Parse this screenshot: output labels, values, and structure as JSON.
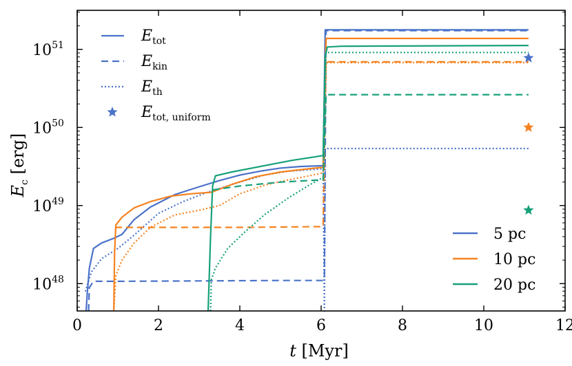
{
  "chart_data": {
    "type": "line",
    "xlabel": "t [Myr]",
    "ylabel": "E_c [erg]",
    "xlim": [
      0,
      12
    ],
    "ylim_log10": [
      47.65,
      51.5
    ],
    "yscale": "log",
    "x_ticks": [
      "0",
      "2",
      "4",
      "6",
      "8",
      "10",
      "12"
    ],
    "y_ticks": [
      {
        "base": "10",
        "exp": "48",
        "log10": 48
      },
      {
        "base": "10",
        "exp": "49",
        "log10": 49
      },
      {
        "base": "10",
        "exp": "50",
        "log10": 50
      },
      {
        "base": "10",
        "exp": "51",
        "log10": 51
      }
    ],
    "colors": {
      "5 pc": "#4a72c8",
      "10 pc": "#f5821f",
      "20 pc": "#16a07a"
    },
    "legend_styles": [
      {
        "label_main": "E",
        "label_sub": "tot",
        "style": "solid",
        "symbol": "line"
      },
      {
        "label_main": "E",
        "label_sub": "kin",
        "style": "dashed",
        "symbol": "line"
      },
      {
        "label_main": "E",
        "label_sub": "th",
        "style": "dotted",
        "symbol": "line"
      },
      {
        "label_main": "E",
        "label_sub": "tot, uniform",
        "style": "star",
        "symbol": "star"
      }
    ],
    "legend_runs": [
      {
        "label": "5 pc",
        "color": "#4a72c8"
      },
      {
        "label": "10 pc",
        "color": "#f5821f"
      },
      {
        "label": "20 pc",
        "color": "#16a07a"
      }
    ],
    "series": [
      {
        "name": "5 pc E_tot",
        "color": "#4a72c8",
        "style": "solid",
        "points": [
          [
            0.22,
            47.65
          ],
          [
            0.25,
            47.9
          ],
          [
            0.3,
            48.2
          ],
          [
            0.4,
            48.45
          ],
          [
            0.6,
            48.52
          ],
          [
            0.9,
            48.58
          ],
          [
            1.1,
            48.63
          ],
          [
            1.4,
            48.82
          ],
          [
            1.8,
            48.98
          ],
          [
            2.4,
            49.14
          ],
          [
            3.0,
            49.24
          ],
          [
            3.5,
            49.32
          ],
          [
            4.0,
            49.39
          ],
          [
            4.5,
            49.44
          ],
          [
            5.0,
            49.48
          ],
          [
            5.5,
            49.5
          ],
          [
            6.05,
            49.51
          ],
          [
            6.1,
            51.25
          ],
          [
            11.1,
            51.25
          ]
        ]
      },
      {
        "name": "5 pc E_kin",
        "color": "#4a72c8",
        "style": "dashed",
        "points": [
          [
            0.28,
            47.65
          ],
          [
            0.3,
            47.95
          ],
          [
            0.4,
            48.03
          ],
          [
            1.0,
            48.03
          ],
          [
            3.0,
            48.035
          ],
          [
            5.0,
            48.04
          ],
          [
            6.05,
            48.04
          ],
          [
            6.08,
            48.05
          ],
          [
            6.12,
            51.24
          ],
          [
            11.1,
            51.24
          ]
        ]
      },
      {
        "name": "5 pc E_th",
        "color": "#4a72c8",
        "style": "dotted",
        "points": [
          [
            0.2,
            47.9
          ],
          [
            0.35,
            48.15
          ],
          [
            0.6,
            48.32
          ],
          [
            1.0,
            48.45
          ],
          [
            1.4,
            48.62
          ],
          [
            2.0,
            48.9
          ],
          [
            2.6,
            49.05
          ],
          [
            3.2,
            49.17
          ],
          [
            4.0,
            49.3
          ],
          [
            4.6,
            49.39
          ],
          [
            5.2,
            49.44
          ],
          [
            6.05,
            49.47
          ],
          [
            6.08,
            47.65
          ],
          [
            6.1,
            49.73
          ],
          [
            11.1,
            49.73
          ]
        ]
      },
      {
        "name": "10 pc E_tot",
        "color": "#f5821f",
        "style": "solid",
        "points": [
          [
            0.9,
            47.65
          ],
          [
            0.92,
            48.4
          ],
          [
            0.95,
            48.75
          ],
          [
            1.1,
            48.85
          ],
          [
            1.4,
            48.97
          ],
          [
            1.8,
            49.05
          ],
          [
            2.3,
            49.12
          ],
          [
            2.8,
            49.15
          ],
          [
            3.3,
            49.17
          ],
          [
            3.8,
            49.27
          ],
          [
            4.4,
            49.37
          ],
          [
            5.0,
            49.43
          ],
          [
            5.5,
            49.46
          ],
          [
            6.05,
            49.49
          ],
          [
            6.12,
            51.14
          ],
          [
            11.1,
            51.14
          ]
        ]
      },
      {
        "name": "10 pc E_kin",
        "color": "#f5821f",
        "style": "dashed",
        "points": [
          [
            0.93,
            48.72
          ],
          [
            2.0,
            48.72
          ],
          [
            4.0,
            48.72
          ],
          [
            6.05,
            48.73
          ],
          [
            6.12,
            50.84
          ],
          [
            11.1,
            50.84
          ]
        ]
      },
      {
        "name": "10 pc E_th",
        "color": "#f5821f",
        "style": "dotted",
        "points": [
          [
            0.9,
            47.65
          ],
          [
            0.95,
            48.1
          ],
          [
            1.1,
            48.3
          ],
          [
            1.4,
            48.52
          ],
          [
            1.8,
            48.72
          ],
          [
            2.4,
            48.88
          ],
          [
            3.0,
            48.94
          ],
          [
            3.5,
            49.0
          ],
          [
            4.0,
            49.15
          ],
          [
            4.6,
            49.26
          ],
          [
            5.2,
            49.33
          ],
          [
            5.7,
            49.38
          ],
          [
            6.05,
            49.42
          ],
          [
            6.12,
            50.83
          ],
          [
            11.1,
            50.83
          ]
        ]
      },
      {
        "name": "20 pc E_tot",
        "color": "#16a07a",
        "style": "solid",
        "points": [
          [
            3.22,
            47.65
          ],
          [
            3.28,
            48.6
          ],
          [
            3.33,
            49.25
          ],
          [
            3.4,
            49.38
          ],
          [
            3.8,
            49.43
          ],
          [
            4.3,
            49.48
          ],
          [
            4.8,
            49.53
          ],
          [
            5.3,
            49.58
          ],
          [
            5.8,
            49.62
          ],
          [
            6.05,
            49.64
          ],
          [
            6.1,
            50.9
          ],
          [
            6.15,
            51.03
          ],
          [
            6.5,
            51.04
          ],
          [
            11.1,
            51.05
          ]
        ]
      },
      {
        "name": "20 pc E_kin",
        "color": "#16a07a",
        "style": "dashed",
        "points": [
          [
            3.33,
            49.2
          ],
          [
            4.0,
            49.25
          ],
          [
            5.0,
            49.3
          ],
          [
            6.05,
            49.33
          ],
          [
            6.12,
            50.42
          ],
          [
            11.1,
            50.42
          ]
        ]
      },
      {
        "name": "20 pc E_th",
        "color": "#16a07a",
        "style": "dotted",
        "points": [
          [
            3.28,
            47.65
          ],
          [
            3.3,
            48.05
          ],
          [
            3.4,
            48.2
          ],
          [
            3.7,
            48.45
          ],
          [
            4.1,
            48.65
          ],
          [
            4.6,
            48.88
          ],
          [
            5.2,
            49.1
          ],
          [
            5.7,
            49.26
          ],
          [
            6.05,
            49.36
          ],
          [
            6.12,
            50.96
          ],
          [
            11.1,
            50.96
          ]
        ]
      }
    ],
    "uniform_markers": [
      {
        "label": "5 pc",
        "color": "#4a72c8",
        "x": 11.1,
        "log10": 50.89
      },
      {
        "label": "10 pc",
        "color": "#f5821f",
        "x": 11.1,
        "log10": 50.0
      },
      {
        "label": "20 pc",
        "color": "#16a07a",
        "x": 11.1,
        "log10": 48.94
      }
    ]
  }
}
